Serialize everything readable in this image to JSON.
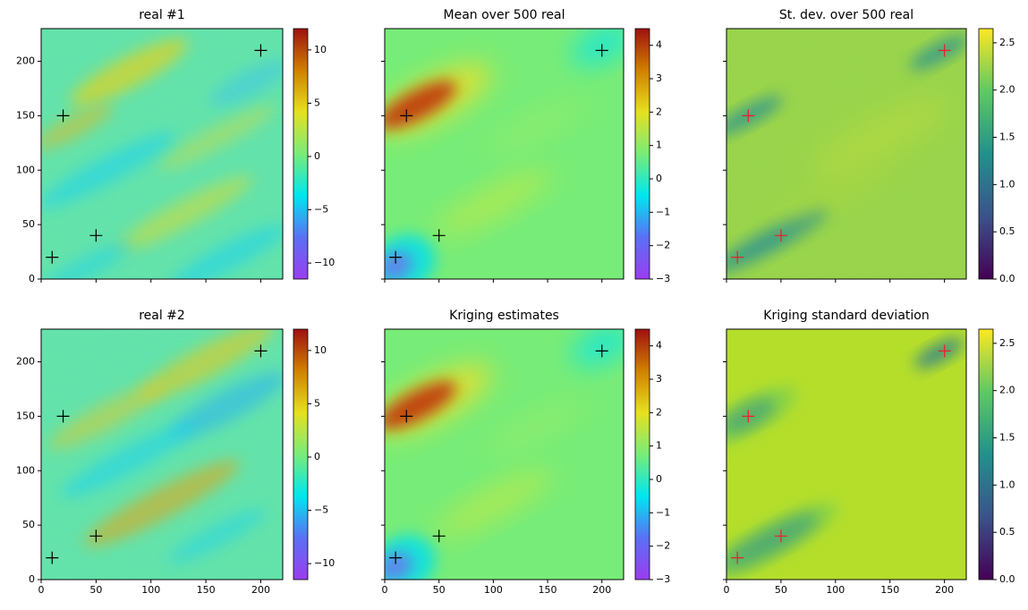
{
  "chart_data": [
    {
      "type": "image",
      "title": "real #1",
      "xlim": [
        0,
        220
      ],
      "ylim": [
        0,
        230
      ],
      "xticks": [
        0,
        50,
        100,
        150,
        200
      ],
      "yticks": [
        0,
        50,
        100,
        150,
        200
      ],
      "show_xticklabels": false,
      "show_yticklabels": true,
      "points": {
        "x": [
          10,
          20,
          50,
          200
        ],
        "y": [
          20,
          150,
          40,
          210
        ],
        "color": "#000000"
      },
      "colormap": [
        "#9b3cf0",
        "#5a70f5",
        "#00e6f0",
        "#78ec78",
        "#e6e020",
        "#d08000",
        "#a01010"
      ],
      "colorbar": {
        "lim": [
          -11.5,
          12
        ],
        "ticks": [
          {
            "value": -10,
            "label": "−10"
          },
          {
            "value": -5,
            "label": "−5"
          },
          0,
          5,
          10
        ]
      }
    },
    {
      "type": "image",
      "title": "Mean over 500 real",
      "xlim": [
        0,
        220
      ],
      "ylim": [
        0,
        230
      ],
      "xticks": [
        0,
        50,
        100,
        150,
        200
      ],
      "yticks": [
        0,
        50,
        100,
        150,
        200
      ],
      "show_xticklabels": false,
      "show_yticklabels": false,
      "points": {
        "x": [
          10,
          20,
          50,
          200
        ],
        "y": [
          20,
          150,
          40,
          210
        ],
        "color": "#000000"
      },
      "colormap": [
        "#9b3cf0",
        "#5a70f5",
        "#00e6f0",
        "#78ec78",
        "#e6e020",
        "#d08000",
        "#a01010"
      ],
      "colorbar": {
        "lim": [
          -3,
          4.5
        ],
        "ticks": [
          {
            "value": -3,
            "label": "−3"
          },
          {
            "value": -2,
            "label": "−2"
          },
          {
            "value": -1,
            "label": "−1"
          },
          0,
          1,
          2,
          3,
          4
        ]
      }
    },
    {
      "type": "image",
      "title": "St. dev. over 500 real",
      "xlim": [
        0,
        220
      ],
      "ylim": [
        0,
        230
      ],
      "xticks": [
        0,
        50,
        100,
        150,
        200
      ],
      "yticks": [
        0,
        50,
        100,
        150,
        200
      ],
      "show_xticklabels": false,
      "show_yticklabels": false,
      "points": {
        "x": [
          10,
          20,
          50,
          200
        ],
        "y": [
          20,
          150,
          40,
          210
        ],
        "color": "#e8202a"
      },
      "colormap": [
        "#440154",
        "#3b528b",
        "#21918c",
        "#5ec962",
        "#fde725"
      ],
      "colorbar": {
        "lim": [
          0,
          2.65
        ],
        "ticks": [
          {
            "value": 0,
            "label": "0.0"
          },
          {
            "value": 0.5,
            "label": "0.5"
          },
          {
            "value": 1,
            "label": "1.0"
          },
          {
            "value": 1.5,
            "label": "1.5"
          },
          {
            "value": 2,
            "label": "2.0"
          },
          {
            "value": 2.5,
            "label": "2.5"
          }
        ]
      }
    },
    {
      "type": "image",
      "title": "real #2",
      "xlim": [
        0,
        220
      ],
      "ylim": [
        0,
        230
      ],
      "xticks": [
        0,
        50,
        100,
        150,
        200
      ],
      "yticks": [
        0,
        50,
        100,
        150,
        200
      ],
      "show_xticklabels": true,
      "show_yticklabels": true,
      "points": {
        "x": [
          10,
          20,
          50,
          200
        ],
        "y": [
          20,
          150,
          40,
          210
        ],
        "color": "#000000"
      },
      "colormap": [
        "#9b3cf0",
        "#5a70f5",
        "#00e6f0",
        "#78ec78",
        "#e6e020",
        "#d08000",
        "#a01010"
      ],
      "colorbar": {
        "lim": [
          -11.5,
          12
        ],
        "ticks": [
          {
            "value": -10,
            "label": "−10"
          },
          {
            "value": -5,
            "label": "−5"
          },
          0,
          5,
          10
        ]
      }
    },
    {
      "type": "image",
      "title": "Kriging estimates",
      "xlim": [
        0,
        220
      ],
      "ylim": [
        0,
        230
      ],
      "xticks": [
        0,
        50,
        100,
        150,
        200
      ],
      "yticks": [
        0,
        50,
        100,
        150,
        200
      ],
      "show_xticklabels": true,
      "show_yticklabels": false,
      "points": {
        "x": [
          10,
          20,
          50,
          200
        ],
        "y": [
          20,
          150,
          40,
          210
        ],
        "color": "#000000"
      },
      "colormap": [
        "#9b3cf0",
        "#5a70f5",
        "#00e6f0",
        "#78ec78",
        "#e6e020",
        "#d08000",
        "#a01010"
      ],
      "colorbar": {
        "lim": [
          -3,
          4.5
        ],
        "ticks": [
          {
            "value": -3,
            "label": "−3"
          },
          {
            "value": -2,
            "label": "−2"
          },
          {
            "value": -1,
            "label": "−1"
          },
          0,
          1,
          2,
          3,
          4
        ]
      }
    },
    {
      "type": "image",
      "title": "Kriging standard deviation",
      "xlim": [
        0,
        220
      ],
      "ylim": [
        0,
        230
      ],
      "xticks": [
        0,
        50,
        100,
        150,
        200
      ],
      "yticks": [
        0,
        50,
        100,
        150,
        200
      ],
      "show_xticklabels": true,
      "show_yticklabels": false,
      "points": {
        "x": [
          10,
          20,
          50,
          200
        ],
        "y": [
          20,
          150,
          40,
          210
        ],
        "color": "#e8202a"
      },
      "colormap": [
        "#440154",
        "#3b528b",
        "#21918c",
        "#5ec962",
        "#fde725"
      ],
      "colorbar": {
        "lim": [
          0,
          2.65
        ],
        "ticks": [
          {
            "value": 0,
            "label": "0.0"
          },
          {
            "value": 0.5,
            "label": "0.5"
          },
          {
            "value": 1,
            "label": "1.0"
          },
          {
            "value": 1.5,
            "label": "1.5"
          },
          {
            "value": 2,
            "label": "2.0"
          },
          {
            "value": 2.5,
            "label": "2.5"
          }
        ]
      }
    }
  ]
}
